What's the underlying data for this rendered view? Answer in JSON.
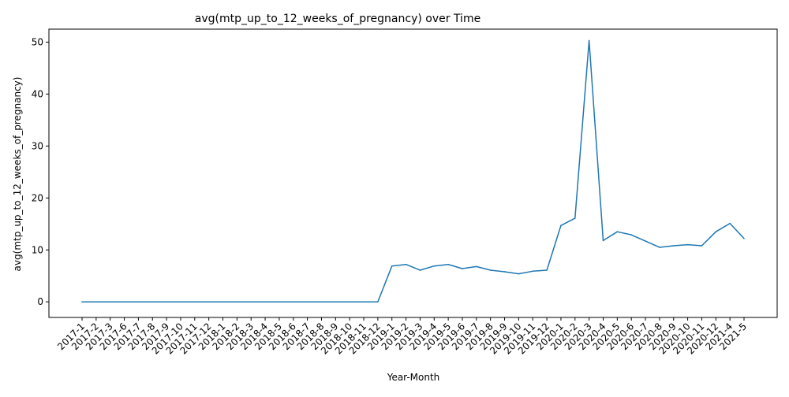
{
  "chart_data": {
    "type": "line",
    "title": "avg(mtp_up_to_12_weeks_of_pregnancy) over Time",
    "xlabel": "Year-Month",
    "ylabel": "avg(mtp_up_to_12_weeks_of_pregnancy)",
    "ylim": [
      -3,
      52.5
    ],
    "yticks": [
      0,
      10,
      20,
      30,
      40,
      50
    ],
    "grid": false,
    "line_color": "#1f77b4",
    "categories": [
      "2017-1",
      "2017-2",
      "2017-3",
      "2017-6",
      "2017-7",
      "2017-8",
      "2017-9",
      "2017-10",
      "2017-11",
      "2017-12",
      "2018-1",
      "2018-2",
      "2018-3",
      "2018-4",
      "2018-5",
      "2018-6",
      "2018-7",
      "2018-8",
      "2018-9",
      "2018-10",
      "2018-11",
      "2018-12",
      "2019-1",
      "2019-2",
      "2019-3",
      "2019-4",
      "2019-5",
      "2019-6",
      "2019-7",
      "2019-8",
      "2019-9",
      "2019-10",
      "2019-11",
      "2019-12",
      "2020-1",
      "2020-2",
      "2020-3",
      "2020-4",
      "2020-5",
      "2020-6",
      "2020-7",
      "2020-8",
      "2020-9",
      "2020-10",
      "2020-11",
      "2020-12",
      "2021-4",
      "2021-5"
    ],
    "series": [
      {
        "values": [
          0,
          0,
          0,
          0,
          0,
          0,
          0,
          0,
          0,
          0,
          0,
          0,
          0,
          0,
          0,
          0,
          0,
          0,
          0,
          0,
          0,
          0,
          6.9,
          7.2,
          6.1,
          6.9,
          7.2,
          6.4,
          6.8,
          6.1,
          5.8,
          5.4,
          5.9,
          6.1,
          14.7,
          16.1,
          50.3,
          11.8,
          13.5,
          12.9,
          11.7,
          10.5,
          10.8,
          11.0,
          10.8,
          13.5,
          15.1,
          12.2
        ]
      }
    ]
  }
}
